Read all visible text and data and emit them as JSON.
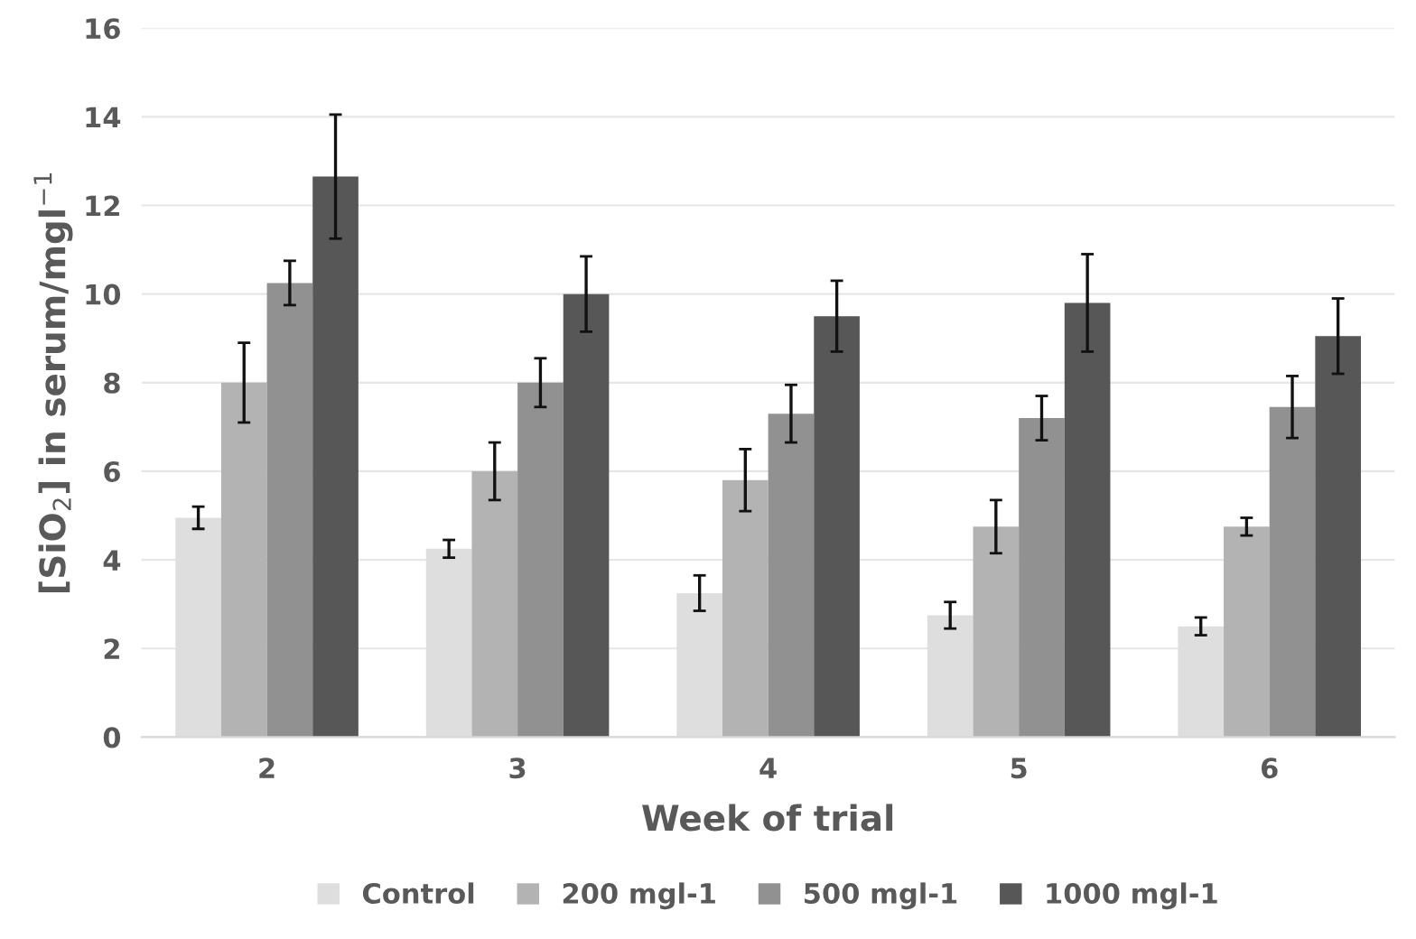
{
  "chart_data": {
    "type": "bar",
    "xlabel": "Week of trial",
    "ylabel": "[SiO$_{2}$] in serum/mgl$^{−1}$",
    "categories": [
      "2",
      "3",
      "4",
      "5",
      "6"
    ],
    "series": [
      {
        "name": "Control",
        "color": "#dedede",
        "values": [
          4.95,
          4.25,
          3.25,
          2.75,
          2.5
        ],
        "errors": [
          0.25,
          0.2,
          0.4,
          0.3,
          0.2
        ]
      },
      {
        "name": "200 mgl-1",
        "color": "#b3b3b3",
        "values": [
          8.0,
          6.0,
          5.8,
          4.75,
          4.75
        ],
        "errors": [
          0.9,
          0.65,
          0.7,
          0.6,
          0.2
        ]
      },
      {
        "name": "500 mgl-1",
        "color": "#919191",
        "values": [
          10.25,
          8.0,
          7.3,
          7.2,
          7.45
        ],
        "errors": [
          0.5,
          0.55,
          0.65,
          0.5,
          0.7
        ]
      },
      {
        "name": "1000 mgl-1",
        "color": "#575757",
        "values": [
          12.65,
          10.0,
          9.5,
          9.8,
          9.05
        ],
        "errors": [
          1.4,
          0.85,
          0.8,
          1.1,
          0.85
        ]
      }
    ],
    "ylim": [
      0,
      16
    ],
    "yticks": [
      0,
      2,
      4,
      6,
      8,
      10,
      12,
      14,
      16
    ],
    "grid": "y",
    "legend": "bottom"
  }
}
